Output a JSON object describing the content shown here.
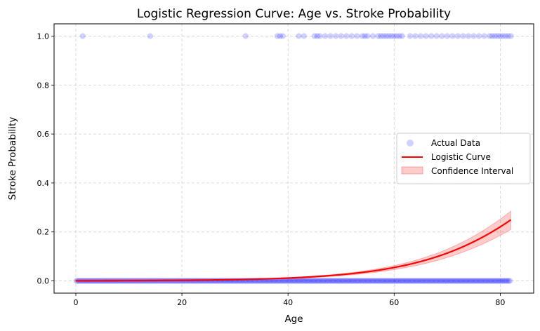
{
  "chart_data": {
    "type": "scatter",
    "title": "Logistic Regression Curve: Age vs. Stroke Probability",
    "xlabel": "Age",
    "ylabel": "Stroke Probability",
    "xlim": [
      -4.1,
      86.3
    ],
    "ylim": [
      -0.05,
      1.05
    ],
    "xticks": [
      0,
      20,
      40,
      60,
      80
    ],
    "yticks": [
      0.0,
      0.2,
      0.4,
      0.6,
      0.8,
      1.0
    ],
    "xtick_labels": [
      "0",
      "20",
      "40",
      "60",
      "80"
    ],
    "ytick_labels": [
      "0.0",
      "0.2",
      "0.4",
      "0.6",
      "0.8",
      "1.0"
    ],
    "grid": true,
    "legend_position": "center-right",
    "colors": {
      "points": "#0000ff",
      "curve": "#ff0000",
      "band": "#ff0000"
    },
    "series": [
      {
        "name": "Actual Data",
        "kind": "scatter",
        "x_range_zero": [
          0.08,
          82
        ],
        "x_one": [
          1.3,
          14,
          32,
          38,
          38.5,
          39,
          42,
          43,
          45,
          45.5,
          46,
          47,
          48,
          49,
          50,
          51,
          52,
          53,
          54,
          54.5,
          55,
          56,
          57,
          57.5,
          58,
          58.5,
          59,
          59.5,
          60,
          60.5,
          61,
          61.5,
          63,
          64,
          65,
          66,
          67,
          68,
          69,
          70,
          71,
          72,
          73,
          74,
          75,
          76,
          77,
          78,
          78.5,
          79,
          79.5,
          80,
          80.5,
          81,
          81.5,
          82
        ]
      },
      {
        "name": "Logistic Curve",
        "kind": "line",
        "intercept": -7.62,
        "slope": 0.0795
      },
      {
        "name": "Confidence Interval",
        "kind": "band",
        "lower_at_max": 0.21,
        "upper_at_max": 0.285
      }
    ]
  }
}
